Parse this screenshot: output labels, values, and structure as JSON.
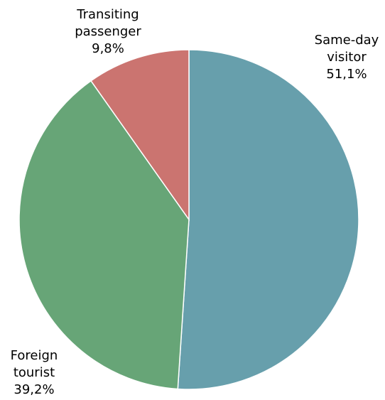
{
  "chart_data": {
    "type": "pie",
    "slices": [
      {
        "label_lines": [
          "Same-day",
          "visitor"
        ],
        "value_label": "51,1%",
        "value": 51.1,
        "color": "#679fac"
      },
      {
        "label_lines": [
          "Foreign",
          "tourist"
        ],
        "value_label": "39,2%",
        "value": 39.2,
        "color": "#67a577"
      },
      {
        "label_lines": [
          "Transiting",
          "passenger"
        ],
        "value_label": "9,8%",
        "value": 9.8,
        "color": "#cb7470"
      }
    ],
    "start_angle_deg": 0,
    "direction": "clockwise",
    "legend": "none"
  }
}
